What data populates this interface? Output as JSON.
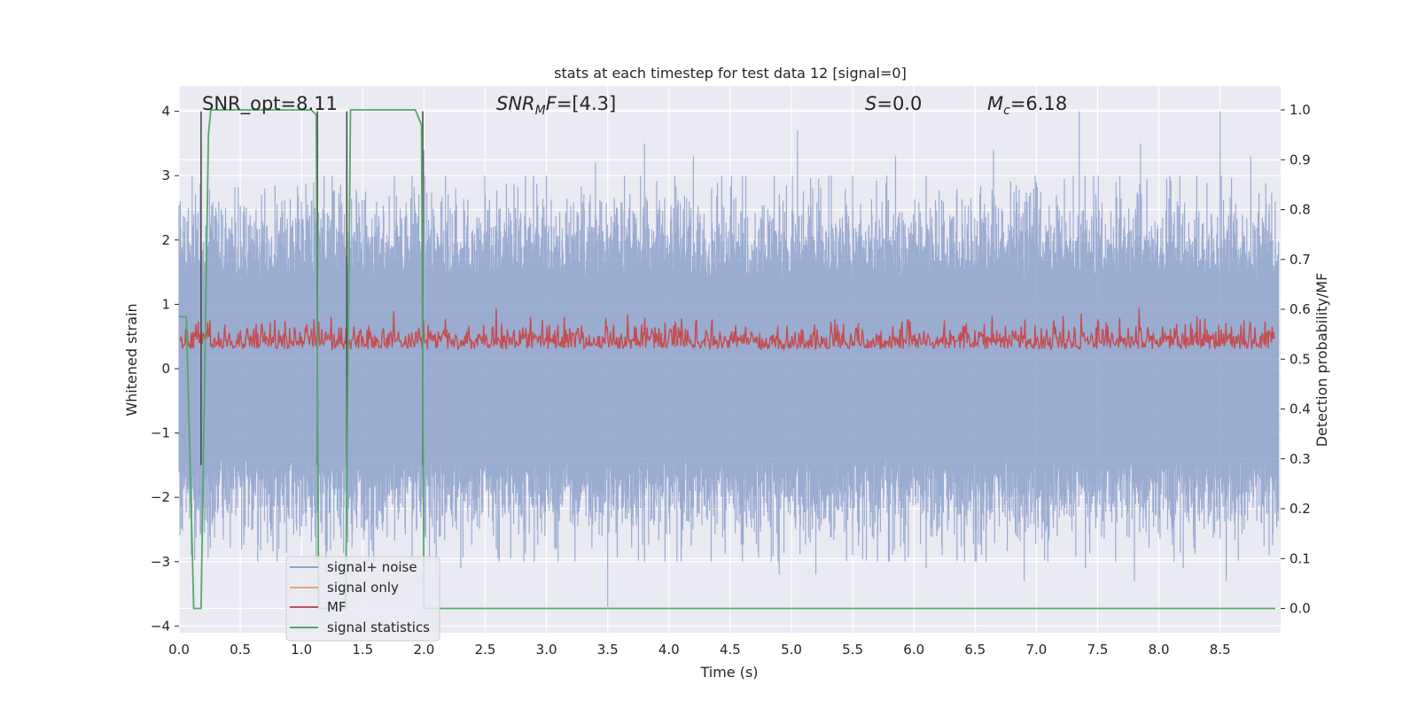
{
  "colors": {
    "plot_background": "#EAEAF2",
    "grid": "#FFFFFF",
    "noise": "#8DA1CB",
    "signal_only": "#E8A27F",
    "mf": "#C44E52",
    "stats": "#55A868",
    "marker": "#4D4D4D"
  },
  "chart_data": {
    "type": "line",
    "title": "stats at each timestep for test data 12 [signal=0]",
    "xlabel": "Time (s)",
    "ylabel": "Whitened strain",
    "y2label": "Detection probability/MF",
    "xlim": [
      0,
      9
    ],
    "ylim": [
      -4.15,
      4.4
    ],
    "y2lim": [
      -0.045,
      1.045
    ],
    "xticks": [
      "0.0",
      "0.5",
      "1.0",
      "1.5",
      "2.0",
      "2.5",
      "3.0",
      "3.5",
      "4.0",
      "4.5",
      "5.0",
      "5.5",
      "6.0",
      "6.5",
      "7.0",
      "7.5",
      "8.0",
      "8.5"
    ],
    "yticks": [
      "4",
      "3",
      "2",
      "1",
      "0",
      "−1",
      "−2",
      "−3",
      "−4"
    ],
    "y2ticks": [
      "1.0",
      "0.9",
      "0.8",
      "0.7",
      "0.6",
      "0.5",
      "0.4",
      "0.3",
      "0.2",
      "0.1",
      "0.0"
    ],
    "annotations": {
      "snr_opt": "SNR_opt=8.11",
      "snr_mf_label": "SNR",
      "snr_mf_sub": "M",
      "snr_mf_f": "F",
      "snr_mf_value": "=[4.3]",
      "s_label": "S",
      "s_value": "=0.0",
      "mc_label": "M",
      "mc_sub": "c",
      "mc_value": "=6.18"
    },
    "legend": {
      "position": "lower-left",
      "entries": [
        "signal+ noise",
        "signal only",
        "MF",
        "signal statistics"
      ]
    },
    "series": [
      {
        "name": "signal+ noise",
        "axis": "left",
        "description": "whitened noise time series, approx. range -3.7 to 4.0",
        "spikes": {
          "0.01": 2.6,
          "0.3": 2.5,
          "0.7": 2.8,
          "1.0": 2.6,
          "1.1": 2.9,
          "1.35": 2.4,
          "1.6": 2.4,
          "2.0": 3.4,
          "2.5": 2.7,
          "3.0": 3.0,
          "3.4": 3.2,
          "3.8": 3.5,
          "4.2": 3.3,
          "4.6": 3.0,
          "5.05": 3.7,
          "5.5": 3.0,
          "5.85": 3.3,
          "6.1": 3.0,
          "6.65": 3.4,
          "7.0": 2.9,
          "7.35": 4.0,
          "7.65": 2.9,
          "7.85": 3.5,
          "8.15": 2.6,
          "8.5": 4.0,
          "8.75": 3.3,
          "8.95": 2.6
        },
        "dips": {
          "0.1": -2.9,
          "0.25": -2.6,
          "0.8": -3.0,
          "1.2": -3.2,
          "1.55": -3.0,
          "2.1": -3.2,
          "2.3": -3.1,
          "2.9": -3.0,
          "3.5": -3.7,
          "3.8": -3.0,
          "4.1": -3.0,
          "4.6": -3.0,
          "4.9": -3.2,
          "5.2": -3.2,
          "5.5": -2.9,
          "5.8": -3.0,
          "6.1": -3.1,
          "6.5": -3.0,
          "6.9": -3.3,
          "7.4": -3.1,
          "7.8": -3.3,
          "8.2": -3.1,
          "8.55": -3.3,
          "8.9": -2.9
        }
      },
      {
        "name": "MF",
        "axis": "right",
        "description": "matched filter output, approx. range 0.5 to 0.64, mean about 0.52"
      },
      {
        "name": "signal statistics",
        "axis": "right",
        "x": [
          0.0,
          0.06,
          0.12,
          0.18,
          0.24,
          0.26,
          0.3,
          1.0,
          1.08,
          1.12,
          1.14,
          1.2,
          1.26,
          1.28,
          1.36,
          1.4,
          1.44,
          1.93,
          1.98,
          2.0,
          2.02,
          2.2,
          8.95
        ],
        "values": [
          0.585,
          0.585,
          0.0,
          0.0,
          0.95,
          1.0,
          1.0,
          1.0,
          1.0,
          0.99,
          0.0,
          0.0,
          0.0,
          0.0,
          0.0,
          1.0,
          1.0,
          1.0,
          0.97,
          0.0,
          0.0,
          0.0,
          0.0
        ]
      },
      {
        "name": "markers",
        "axis": "left",
        "x": [
          0.18,
          1.13,
          1.37,
          1.99
        ],
        "values": [
          4.0,
          4.0,
          4.0,
          4.0
        ]
      }
    ]
  }
}
